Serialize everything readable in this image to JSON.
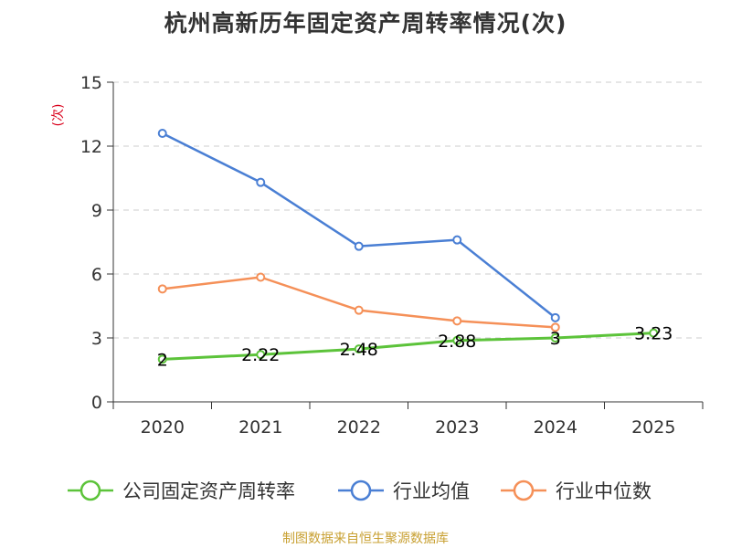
{
  "page": {
    "title": "杭州高新历年固定资产周转率情况(次)",
    "source": "制图数据来自恒生聚源数据库"
  },
  "colors": {
    "company": "#5cc33a",
    "industry_avg": "#4a7fd4",
    "industry_median": "#f59058",
    "grid": "#cccccc",
    "axis": "#333333",
    "unit": "#d9001b"
  },
  "chart_data": {
    "type": "line",
    "title": "杭州高新历年固定资产周转率情况(次)",
    "xlabel": "",
    "ylabel": "(次)",
    "categories": [
      "2020",
      "2021",
      "2022",
      "2023",
      "2024",
      "2025"
    ],
    "ylim": [
      0,
      15
    ],
    "yticks": [
      0,
      3,
      6,
      9,
      12,
      15
    ],
    "ytick_labels": [
      "0",
      "3",
      "6",
      "9",
      "12",
      "15"
    ],
    "grid": true,
    "legend_position": "bottom",
    "series": [
      {
        "key": "company",
        "name": "公司固定资产周转率",
        "color": "#5cc33a",
        "values": [
          2.0,
          2.22,
          2.48,
          2.88,
          3.0,
          3.23
        ],
        "labels": [
          "2",
          "2.22",
          "2.48",
          "2.88",
          "3",
          "3.23"
        ]
      },
      {
        "key": "industry_avg",
        "name": "行业均值",
        "color": "#4a7fd4",
        "values": [
          12.6,
          10.3,
          7.3,
          7.6,
          3.95,
          null
        ]
      },
      {
        "key": "industry_median",
        "name": "行业中位数",
        "color": "#f59058",
        "values": [
          5.3,
          5.85,
          4.3,
          3.8,
          3.5,
          null
        ]
      }
    ]
  }
}
